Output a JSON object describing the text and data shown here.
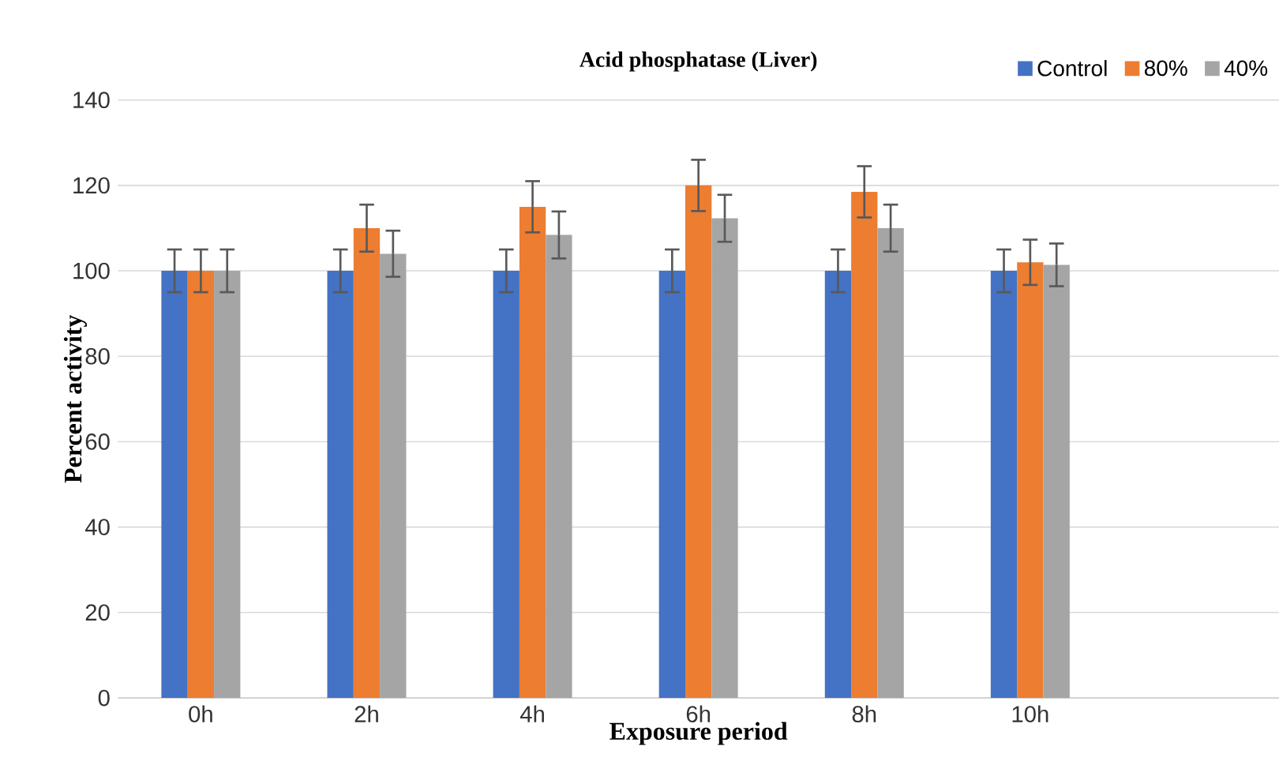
{
  "chart_data": {
    "type": "bar",
    "title": "Acid phosphatase (Liver)",
    "xlabel": "Exposure period",
    "ylabel": "Percent activity",
    "categories": [
      "0h",
      "2h",
      "4h",
      "6h",
      "8h",
      "10h",
      null
    ],
    "series": [
      {
        "name": "Control",
        "color": "#4472c4",
        "values": [
          100,
          100,
          100,
          100,
          100,
          100,
          null
        ],
        "errors": [
          5,
          5,
          5,
          5,
          5,
          5,
          null
        ]
      },
      {
        "name": "80%",
        "color": "#ed7d31",
        "values": [
          100,
          110,
          115,
          120,
          118.5,
          102,
          null
        ],
        "errors": [
          5,
          5.5,
          6,
          6,
          6,
          5.3,
          null
        ]
      },
      {
        "name": "40%",
        "color": "#a5a5a5",
        "values": [
          100,
          104,
          108.4,
          112.3,
          110,
          101.4,
          null
        ],
        "errors": [
          5,
          5.4,
          5.5,
          5.5,
          5.5,
          5,
          null
        ]
      }
    ],
    "ylim": [
      0,
      140
    ],
    "yticks": [
      0,
      20,
      40,
      60,
      80,
      100,
      120,
      140
    ],
    "grid": "y",
    "legend": "top right"
  }
}
